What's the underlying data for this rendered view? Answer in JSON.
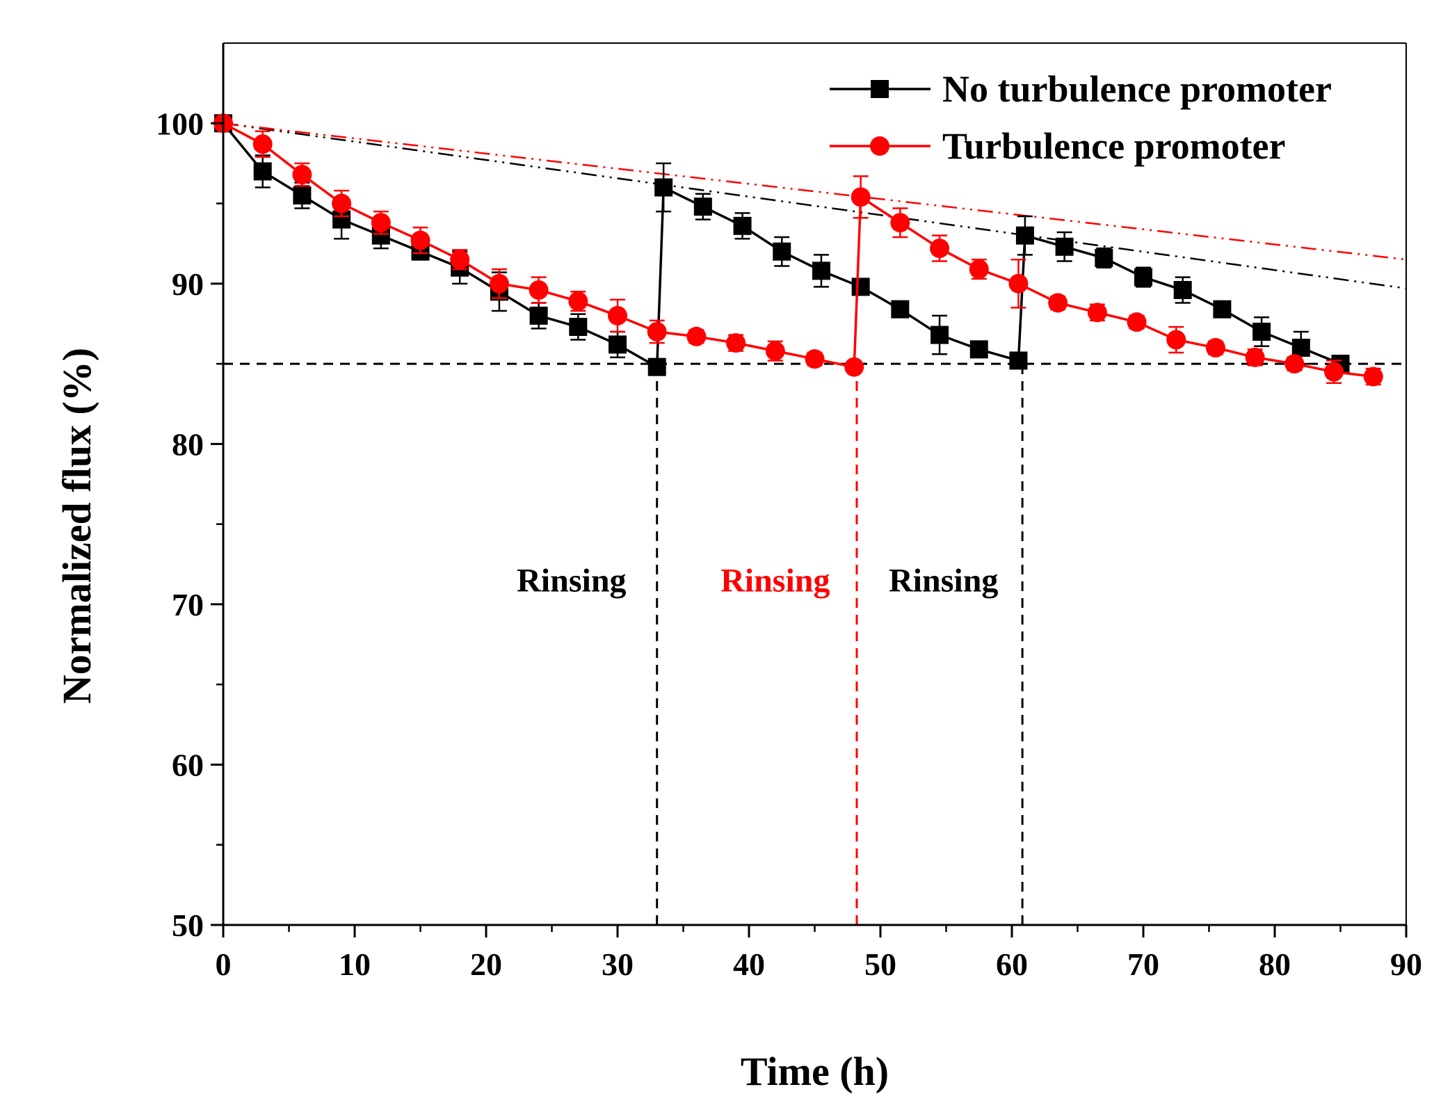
{
  "chart_data": {
    "type": "line",
    "xlabel": "Time (h)",
    "ylabel": "Normalized flux (%)",
    "xlim": [
      0,
      90
    ],
    "ylim": [
      50,
      105
    ],
    "x_ticks": [
      0,
      10,
      20,
      30,
      40,
      50,
      60,
      70,
      80,
      90
    ],
    "y_ticks": [
      50,
      60,
      70,
      80,
      90,
      100
    ],
    "grid": false,
    "legend_position": "top-right",
    "colors": {
      "black": "#000000",
      "red": "#ff0000"
    },
    "series": [
      {
        "name": "No turbulence promoter",
        "color": "#000000",
        "marker": "square",
        "x": [
          0,
          3,
          6,
          9,
          12,
          15,
          18,
          21,
          24,
          27,
          30,
          33,
          33.5,
          36.5,
          39.5,
          42.5,
          45.5,
          48.5,
          51.5,
          54.5,
          57.5,
          60.5,
          61,
          64,
          67,
          70,
          73,
          76,
          79,
          82,
          85
        ],
        "y": [
          100,
          97.0,
          95.5,
          94.0,
          93.0,
          92.0,
          91.0,
          89.5,
          88.0,
          87.3,
          86.2,
          84.8,
          96.0,
          94.8,
          93.6,
          92.0,
          90.8,
          89.8,
          88.4,
          86.8,
          85.9,
          85.2,
          93.0,
          92.3,
          91.6,
          90.4,
          89.6,
          88.4,
          87.0,
          86.0,
          85.0
        ],
        "err": [
          0.3,
          1.0,
          0.8,
          1.2,
          0.8,
          0.5,
          1.0,
          1.2,
          0.8,
          0.8,
          0.8,
          0.5,
          1.5,
          0.8,
          0.8,
          0.9,
          1.0,
          0.5,
          0.5,
          1.2,
          0.5,
          0.5,
          1.2,
          0.9,
          0.6,
          0.6,
          0.8,
          0.4,
          0.9,
          1.0,
          0.5
        ]
      },
      {
        "name": "Turbulence promoter",
        "color": "#ff0000",
        "marker": "circle",
        "x": [
          0,
          3,
          6,
          9,
          12,
          15,
          18,
          21,
          24,
          27,
          30,
          33,
          36,
          39,
          42,
          45,
          48,
          48.5,
          51.5,
          54.5,
          57.5,
          60.5,
          63.5,
          66.5,
          69.5,
          72.5,
          75.5,
          78.5,
          81.5,
          84.5,
          87.5
        ],
        "y": [
          100,
          98.7,
          96.8,
          95.0,
          93.8,
          92.7,
          91.5,
          90.0,
          89.6,
          88.9,
          88.0,
          87.0,
          86.7,
          86.3,
          85.8,
          85.3,
          84.8,
          95.4,
          93.8,
          92.2,
          90.9,
          90.0,
          88.8,
          88.2,
          87.6,
          86.5,
          86.0,
          85.4,
          85.0,
          84.5,
          84.2
        ],
        "err": [
          0.3,
          0.8,
          0.7,
          0.8,
          0.7,
          0.8,
          0.6,
          0.9,
          0.8,
          0.6,
          1.0,
          0.7,
          0.4,
          0.5,
          0.6,
          0.4,
          0.3,
          1.3,
          0.9,
          0.8,
          0.6,
          1.5,
          0.4,
          0.5,
          0.4,
          0.8,
          0.4,
          0.5,
          0.4,
          0.7,
          0.5
        ]
      }
    ],
    "reference_lines": [
      {
        "kind": "horizontal",
        "y": 85,
        "style": "dashed",
        "color": "#000000",
        "x_from": 0,
        "x_to": 90
      },
      {
        "kind": "vertical",
        "x": 33,
        "style": "dashed",
        "color": "#000000",
        "y_from": 50,
        "y_to": 84.8
      },
      {
        "kind": "vertical",
        "x": 48.2,
        "style": "dashed",
        "color": "#ff0000",
        "y_from": 50,
        "y_to": 84.8
      },
      {
        "kind": "vertical",
        "x": 60.8,
        "style": "dashed",
        "color": "#000000",
        "y_from": 50,
        "y_to": 85.2
      }
    ],
    "trend_lines": [
      {
        "color": "#000000",
        "style": "dash-dot-dot",
        "x": [
          0,
          90
        ],
        "y": [
          100,
          89.7
        ]
      },
      {
        "color": "#ff0000",
        "style": "dash-dot-dot",
        "x": [
          0,
          90
        ],
        "y": [
          100,
          91.5
        ]
      }
    ],
    "annotations": [
      {
        "text": "Rinsing",
        "color": "#000000",
        "x": 26.5,
        "y": 70.8
      },
      {
        "text": "Rinsing",
        "color": "#ff0000",
        "x": 42.0,
        "y": 70.8
      },
      {
        "text": "Rinsing",
        "color": "#000000",
        "x": 54.8,
        "y": 70.8
      }
    ]
  }
}
